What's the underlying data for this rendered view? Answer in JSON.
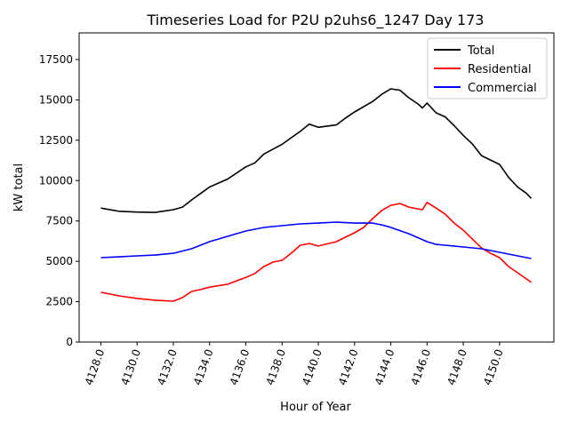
{
  "chart_data": {
    "type": "line",
    "title": "Timeseries Load for P2U p2uhs6_1247  Day 173",
    "xlabel": "Hour of Year",
    "ylabel": "kW total",
    "xlim": [
      4126.8,
      4153.0
    ],
    "ylim": [
      0,
      19150
    ],
    "xticks": [
      4128,
      4130,
      4132,
      4134,
      4136,
      4138,
      4140,
      4142,
      4144,
      4146,
      4148,
      4150
    ],
    "xtick_labels": [
      "4128.0",
      "4130.0",
      "4132.0",
      "4134.0",
      "4136.0",
      "4138.0",
      "4140.0",
      "4142.0",
      "4144.0",
      "4146.0",
      "4148.0",
      "4150.0"
    ],
    "yticks": [
      0,
      2500,
      5000,
      7500,
      10000,
      12500,
      15000,
      17500
    ],
    "ytick_labels": [
      "0",
      "2500",
      "5000",
      "7500",
      "10000",
      "12500",
      "15000",
      "17500"
    ],
    "grid": false,
    "legend_position": "top-right",
    "series": [
      {
        "name": "Total",
        "color": "#000000",
        "x": [
          4128,
          4129,
          4130,
          4131,
          4132,
          4132.5,
          4133,
          4133.5,
          4134,
          4135,
          4136,
          4136.5,
          4137,
          4138,
          4139,
          4139.5,
          4140,
          4141,
          4141.5,
          4142,
          4143,
          4143.5,
          4144,
          4144.5,
          4145,
          4145.5,
          4145.75,
          4146,
          4146.5,
          4147,
          4147.5,
          4148,
          4148.5,
          4149,
          4150,
          4150.5,
          4151,
          4151.5,
          4151.75
        ],
        "y": [
          8300,
          8100,
          8050,
          8030,
          8200,
          8360,
          8800,
          9200,
          9600,
          10100,
          10850,
          11100,
          11650,
          12250,
          13050,
          13500,
          13300,
          13450,
          13870,
          14250,
          14900,
          15350,
          15680,
          15600,
          15130,
          14750,
          14500,
          14800,
          14200,
          13950,
          13400,
          12800,
          12270,
          11550,
          11000,
          10200,
          9600,
          9200,
          8900
        ]
      },
      {
        "name": "Residential",
        "color": "#ff0000",
        "x": [
          4128,
          4129,
          4130,
          4131,
          4132,
          4132.5,
          4133,
          4133.5,
          4134,
          4135,
          4136,
          4136.5,
          4137,
          4137.5,
          4138,
          4138.5,
          4139,
          4139.5,
          4140,
          4141,
          4141.5,
          4142,
          4142.5,
          4143,
          4143.5,
          4144,
          4144.5,
          4145,
          4145.5,
          4145.75,
          4146,
          4146.5,
          4147,
          4147.5,
          4148,
          4148.5,
          4149,
          4149.5,
          4150,
          4150.5,
          4151,
          4151.5,
          4151.75
        ],
        "y": [
          3080,
          2860,
          2700,
          2590,
          2530,
          2750,
          3130,
          3250,
          3400,
          3580,
          4000,
          4250,
          4680,
          4950,
          5060,
          5500,
          6000,
          6100,
          5950,
          6220,
          6500,
          6770,
          7100,
          7650,
          8150,
          8470,
          8580,
          8360,
          8250,
          8200,
          8650,
          8300,
          7920,
          7370,
          6930,
          6380,
          5830,
          5500,
          5230,
          4680,
          4290,
          3900,
          3690
        ]
      },
      {
        "name": "Commercial",
        "color": "#0000ff",
        "x": [
          4128,
          4129,
          4130,
          4131,
          4132,
          4133,
          4134,
          4135,
          4136,
          4137,
          4138,
          4139,
          4140,
          4141,
          4142,
          4143,
          4143.5,
          4144,
          4145,
          4146,
          4146.5,
          4147,
          4148,
          4149,
          4150,
          4151,
          4151.75
        ],
        "y": [
          5230,
          5280,
          5340,
          5390,
          5500,
          5780,
          6220,
          6550,
          6880,
          7100,
          7210,
          7320,
          7370,
          7430,
          7370,
          7370,
          7260,
          7100,
          6710,
          6220,
          6050,
          6000,
          5890,
          5780,
          5560,
          5340,
          5170
        ]
      }
    ]
  }
}
